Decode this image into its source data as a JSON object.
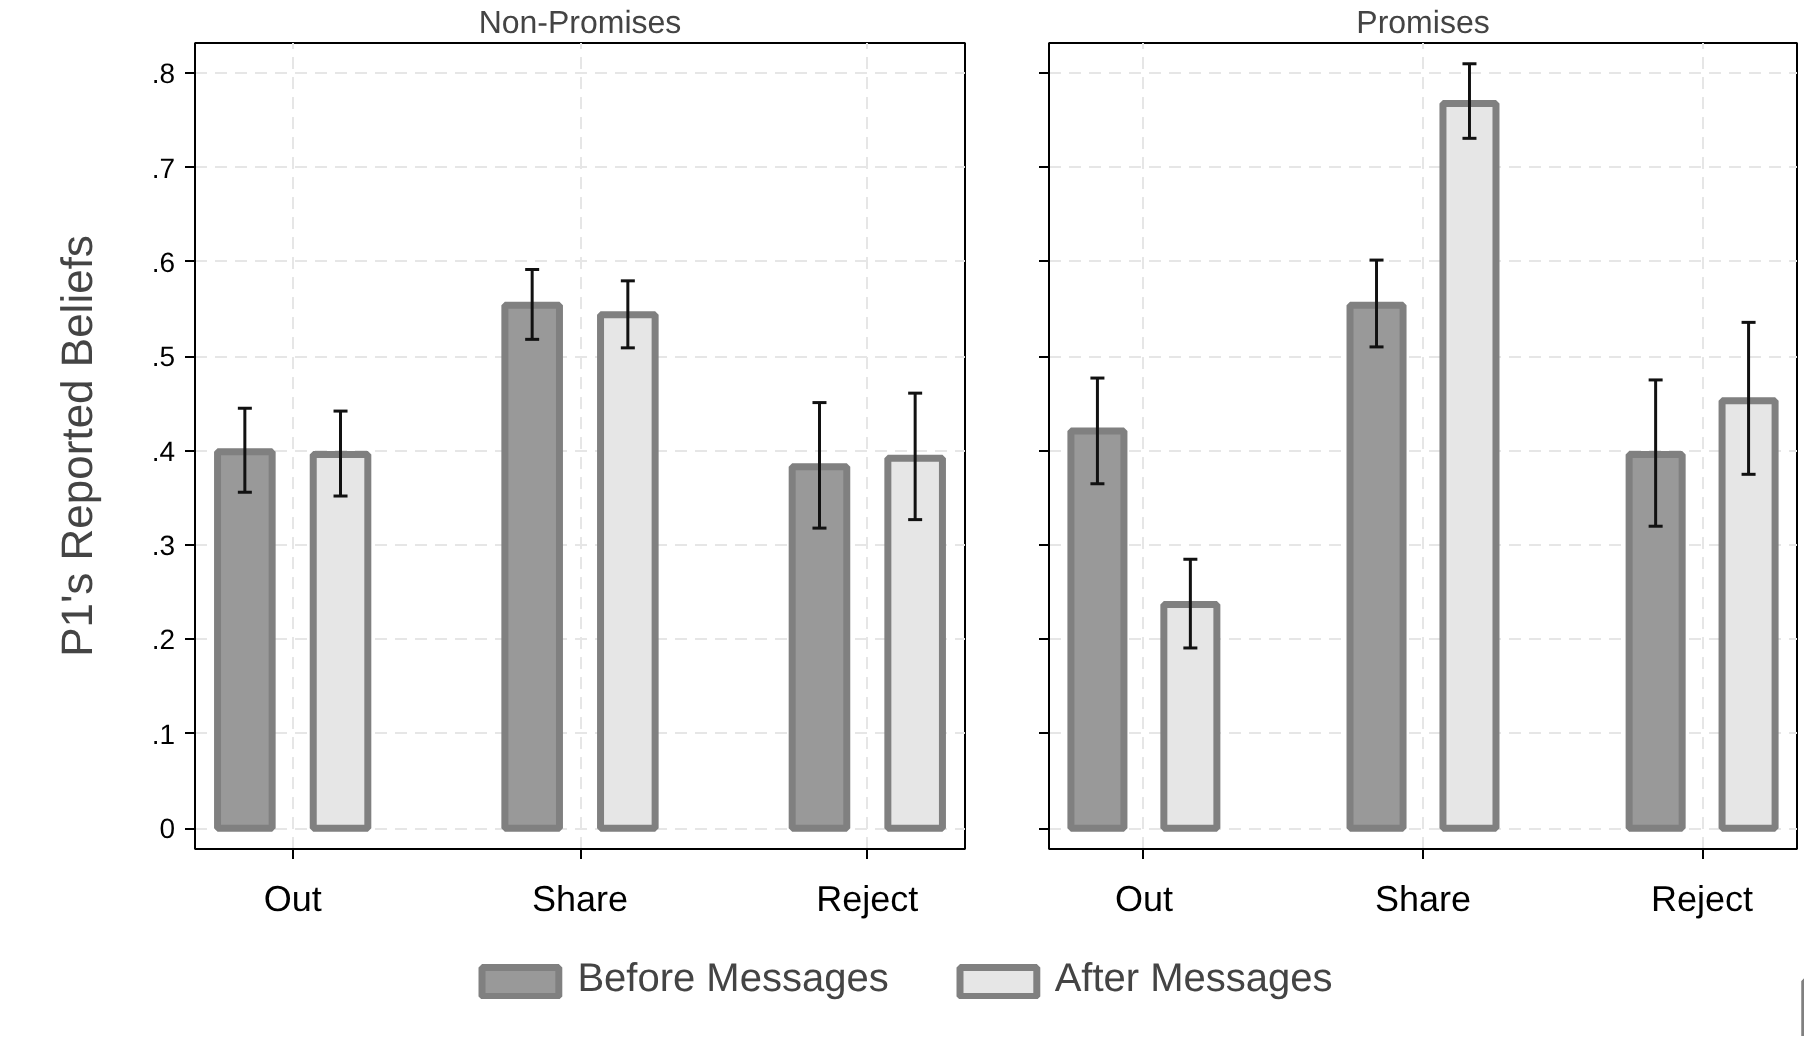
{
  "chart_data": [
    {
      "type": "bar",
      "title": "Non-Promises",
      "ylabel": "P1's Reported Beliefs",
      "categories": [
        "Out",
        "Share",
        "Reject"
      ],
      "series": [
        {
          "name": "Before Messages",
          "color": "#999999",
          "values": [
            0.399,
            0.554,
            0.383
          ],
          "errors": [
            [
              0.356,
              0.445
            ],
            [
              0.518,
              0.592
            ],
            [
              0.318,
              0.451
            ]
          ]
        },
        {
          "name": "After Messages",
          "color": "#e6e6e6",
          "values": [
            0.396,
            0.544,
            0.392
          ],
          "errors": [
            [
              0.352,
              0.442
            ],
            [
              0.509,
              0.58
            ],
            [
              0.327,
              0.461
            ]
          ]
        }
      ],
      "ylim": [
        -0.022,
        0.832
      ],
      "yticks": [
        {
          "value": 0,
          "label": "0"
        },
        {
          "value": 0.1,
          "label": ".1"
        },
        {
          "value": 0.2,
          "label": ".2"
        },
        {
          "value": 0.3,
          "label": ".3"
        },
        {
          "value": 0.4,
          "label": ".4"
        },
        {
          "value": 0.5,
          "label": ".5"
        },
        {
          "value": 0.6,
          "label": ".6"
        },
        {
          "value": 0.7,
          "label": ".7"
        },
        {
          "value": 0.8,
          "label": ".8"
        }
      ],
      "grid": true,
      "legend": "bottom"
    },
    {
      "type": "bar",
      "title": "Promises",
      "categories": [
        "Out",
        "Share",
        "Reject"
      ],
      "series": [
        {
          "color": "#999999",
          "values": [
            0.421,
            0.554,
            0.396
          ],
          "errors": [
            [
              0.365,
              0.477
            ],
            [
              0.51,
              0.602
            ],
            [
              0.32,
              0.475
            ]
          ]
        },
        {
          "color": "#e6e6e6",
          "values": [
            0.237,
            0.768,
            0.453
          ],
          "errors": [
            [
              0.191,
              0.285
            ],
            [
              0.731,
              0.81
            ],
            [
              0.375,
              0.536
            ]
          ]
        }
      ],
      "ylim": [
        -0.022,
        0.832
      ],
      "yticks": [
        {
          "value": 0,
          "label": null
        },
        {
          "value": 0.1,
          "label": null
        },
        {
          "value": 0.2,
          "label": null
        },
        {
          "value": 0.3,
          "label": null
        },
        {
          "value": 0.4,
          "label": null
        },
        {
          "value": 0.5,
          "label": null
        },
        {
          "value": 0.6,
          "label": null
        },
        {
          "value": 0.7,
          "label": null
        },
        {
          "value": 0.8,
          "label": null
        }
      ],
      "grid": true,
      "tick_labels": "x"
    }
  ]
}
